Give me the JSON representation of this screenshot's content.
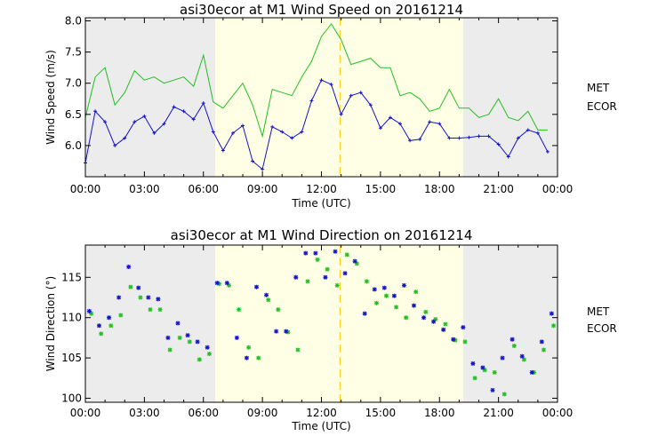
{
  "colors": {
    "met": "#22c022",
    "ecor": "#1414c8",
    "night_band": "#ececec",
    "day_band": "#ffffe6",
    "marker_line": "#ffd21e"
  },
  "chart_data": [
    {
      "type": "line",
      "title": "asi30ecor at M1 Wind Speed on 20161214",
      "xlabel": "Time (UTC)",
      "ylabel": "Wind Speed (m/s)",
      "xlim": [
        0,
        24
      ],
      "ylim": [
        5.5,
        8.05
      ],
      "xticks": [
        0,
        3,
        6,
        9,
        12,
        15,
        18,
        21,
        24
      ],
      "xtick_labels": [
        "00:00",
        "03:00",
        "06:00",
        "09:00",
        "12:00",
        "15:00",
        "18:00",
        "21:00",
        "00:00"
      ],
      "yticks": [
        6.0,
        6.5,
        7.0,
        7.5,
        8.0
      ],
      "ytick_labels": [
        "6.0",
        "6.5",
        "7.0",
        "7.5",
        "8.0"
      ],
      "daylight_span": [
        6.6,
        19.2
      ],
      "marker_time": 12.95,
      "series": [
        {
          "name": "MET",
          "color_key": "met",
          "style": "line",
          "x": [
            0,
            0.5,
            1,
            1.5,
            2,
            2.5,
            3,
            3.5,
            4,
            4.5,
            5,
            5.5,
            6,
            6.5,
            7,
            7.5,
            8,
            8.5,
            9,
            9.5,
            10,
            10.5,
            11,
            11.5,
            12,
            12.5,
            13,
            13.5,
            14,
            14.5,
            15,
            15.5,
            16,
            16.5,
            17,
            17.5,
            18,
            18.5,
            19,
            19.5,
            20,
            20.5,
            21,
            21.5,
            22,
            22.5,
            23,
            23.5
          ],
          "y": [
            6.45,
            7.1,
            7.25,
            6.65,
            6.85,
            7.2,
            7.05,
            7.1,
            7.0,
            7.05,
            7.1,
            6.95,
            7.45,
            6.7,
            6.6,
            6.8,
            7.0,
            6.65,
            6.15,
            6.9,
            6.85,
            6.8,
            7.1,
            7.35,
            7.75,
            7.95,
            7.7,
            7.3,
            7.35,
            7.4,
            7.25,
            7.25,
            6.8,
            6.85,
            6.75,
            6.55,
            6.6,
            6.9,
            6.6,
            6.6,
            6.45,
            6.5,
            6.75,
            6.45,
            6.4,
            6.55,
            6.25,
            6.25
          ]
        },
        {
          "name": "ECOR",
          "color_key": "ecor",
          "style": "line+markers",
          "x": [
            0,
            0.5,
            1,
            1.5,
            2,
            2.5,
            3,
            3.5,
            4,
            4.5,
            5,
            5.5,
            6,
            6.5,
            7,
            7.5,
            8,
            8.5,
            9,
            9.5,
            10,
            10.5,
            11,
            11.5,
            12,
            12.5,
            13,
            13.5,
            14,
            14.5,
            15,
            15.5,
            16,
            16.5,
            17,
            17.5,
            18,
            18.5,
            19,
            19.5,
            20,
            20.5,
            21,
            21.5,
            22,
            22.5,
            23,
            23.5
          ],
          "y": [
            5.72,
            6.55,
            6.38,
            6.0,
            6.12,
            6.38,
            6.47,
            6.2,
            6.35,
            6.62,
            6.55,
            6.42,
            6.68,
            6.22,
            5.92,
            6.2,
            6.32,
            5.75,
            5.62,
            6.3,
            6.22,
            6.12,
            6.22,
            6.72,
            7.05,
            6.98,
            6.5,
            6.8,
            6.85,
            6.65,
            6.28,
            6.45,
            6.35,
            6.08,
            6.1,
            6.38,
            6.35,
            6.12,
            6.12,
            6.13,
            6.15,
            6.15,
            6.02,
            5.82,
            6.12,
            6.25,
            6.2,
            5.9
          ]
        }
      ],
      "legend": [
        "MET",
        "ECOR"
      ],
      "legend_position": "right"
    },
    {
      "type": "scatter",
      "title": "asi30ecor at M1 Wind Direction on 20161214",
      "xlabel": "Time (UTC)",
      "ylabel": "Wind Direction (°)",
      "xlim": [
        0,
        24
      ],
      "ylim": [
        99.5,
        119
      ],
      "xticks": [
        0,
        3,
        6,
        9,
        12,
        15,
        18,
        21,
        24
      ],
      "xtick_labels": [
        "00:00",
        "03:00",
        "06:00",
        "09:00",
        "12:00",
        "15:00",
        "18:00",
        "21:00",
        "00:00"
      ],
      "yticks": [
        100,
        105,
        110,
        115
      ],
      "ytick_labels": [
        "100",
        "105",
        "110",
        "115"
      ],
      "daylight_span": [
        6.6,
        19.2
      ],
      "marker_time": 12.95,
      "series": [
        {
          "name": "MET",
          "color_key": "met",
          "style": "markers",
          "x": [
            0.3,
            0.8,
            1.3,
            1.8,
            2.3,
            2.8,
            3.3,
            3.8,
            4.3,
            4.8,
            5.3,
            5.8,
            6.3,
            6.8,
            7.3,
            7.8,
            8.3,
            8.8,
            9.3,
            9.8,
            10.3,
            10.8,
            11.3,
            11.8,
            12.3,
            12.8,
            13.3,
            13.8,
            14.3,
            14.8,
            15.3,
            15.8,
            16.3,
            16.8,
            17.3,
            17.8,
            18.3,
            18.8,
            19.3,
            19.8,
            20.3,
            20.8,
            21.3,
            21.8,
            22.3,
            22.8,
            23.3,
            23.8
          ],
          "y": [
            110.5,
            108,
            109,
            110.3,
            113.8,
            112.5,
            111,
            111,
            106,
            107.5,
            107,
            104.8,
            105.5,
            114.2,
            114,
            111,
            106.3,
            105,
            112.2,
            111,
            108.2,
            106,
            114.5,
            117.2,
            116,
            114,
            117.8,
            116.7,
            114.5,
            111.8,
            112.7,
            111.3,
            110,
            113.2,
            110.7,
            109.8,
            109.2,
            107.2,
            107,
            102.5,
            103.5,
            103.2,
            100.5,
            106.5,
            104.8,
            103.2,
            106,
            109
          ]
        },
        {
          "name": "ECOR",
          "color_key": "ecor",
          "style": "markers",
          "x": [
            0.2,
            0.7,
            1.2,
            1.7,
            2.2,
            2.7,
            3.2,
            3.7,
            4.2,
            4.7,
            5.2,
            5.7,
            6.2,
            6.7,
            7.2,
            7.7,
            8.2,
            8.7,
            9.2,
            9.7,
            10.2,
            10.7,
            11.2,
            11.7,
            12.2,
            12.7,
            13.2,
            13.7,
            14.2,
            14.7,
            15.2,
            15.7,
            16.2,
            16.7,
            17.2,
            17.7,
            18.2,
            18.7,
            19.2,
            19.7,
            20.2,
            20.7,
            21.2,
            21.7,
            22.2,
            22.7,
            23.2,
            23.7
          ],
          "y": [
            110.8,
            109,
            110,
            112.5,
            116.3,
            113.7,
            112.5,
            112.3,
            107.5,
            109.3,
            107.8,
            107,
            106.3,
            114.3,
            114.3,
            107.5,
            105,
            113.8,
            112.8,
            108.3,
            108.3,
            115,
            118,
            118,
            115,
            118.2,
            115.5,
            117,
            110.5,
            113.5,
            113.7,
            112.7,
            114,
            111.5,
            110,
            109.5,
            108.5,
            107.3,
            108.8,
            104.3,
            103.8,
            101,
            105,
            107.3,
            105.2,
            103.2,
            107,
            110.5
          ]
        }
      ],
      "legend": [
        "MET",
        "ECOR"
      ],
      "legend_position": "right"
    }
  ]
}
